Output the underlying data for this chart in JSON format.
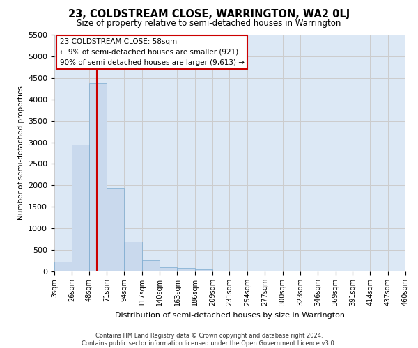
{
  "title": "23, COLDSTREAM CLOSE, WARRINGTON, WA2 0LJ",
  "subtitle": "Size of property relative to semi-detached houses in Warrington",
  "xlabel": "Distribution of semi-detached houses by size in Warrington",
  "ylabel": "Number of semi-detached properties",
  "footer1": "Contains HM Land Registry data © Crown copyright and database right 2024.",
  "footer2": "Contains public sector information licensed under the Open Government Licence v3.0.",
  "annotation_title": "23 COLDSTREAM CLOSE: 58sqm",
  "annotation_line1": "← 9% of semi-detached houses are smaller (921)",
  "annotation_line2": "90% of semi-detached houses are larger (9,613) →",
  "property_size": 58,
  "bar_color": "#c9d9ed",
  "bar_edge_color": "#7aaad0",
  "vline_color": "#cc0000",
  "annotation_box_color": "#ffffff",
  "annotation_box_edge": "#cc0000",
  "bins": [
    3,
    26,
    48,
    71,
    94,
    117,
    140,
    163,
    186,
    209,
    231,
    254,
    277,
    300,
    323,
    346,
    369,
    391,
    414,
    437,
    460
  ],
  "counts": [
    230,
    2950,
    4380,
    1940,
    700,
    260,
    105,
    85,
    50,
    0,
    0,
    0,
    0,
    0,
    0,
    0,
    0,
    0,
    0,
    0
  ],
  "ylim": [
    0,
    5500
  ],
  "yticks": [
    0,
    500,
    1000,
    1500,
    2000,
    2500,
    3000,
    3500,
    4000,
    4500,
    5000,
    5500
  ],
  "grid_color": "#cccccc",
  "bg_color": "#dce8f5"
}
